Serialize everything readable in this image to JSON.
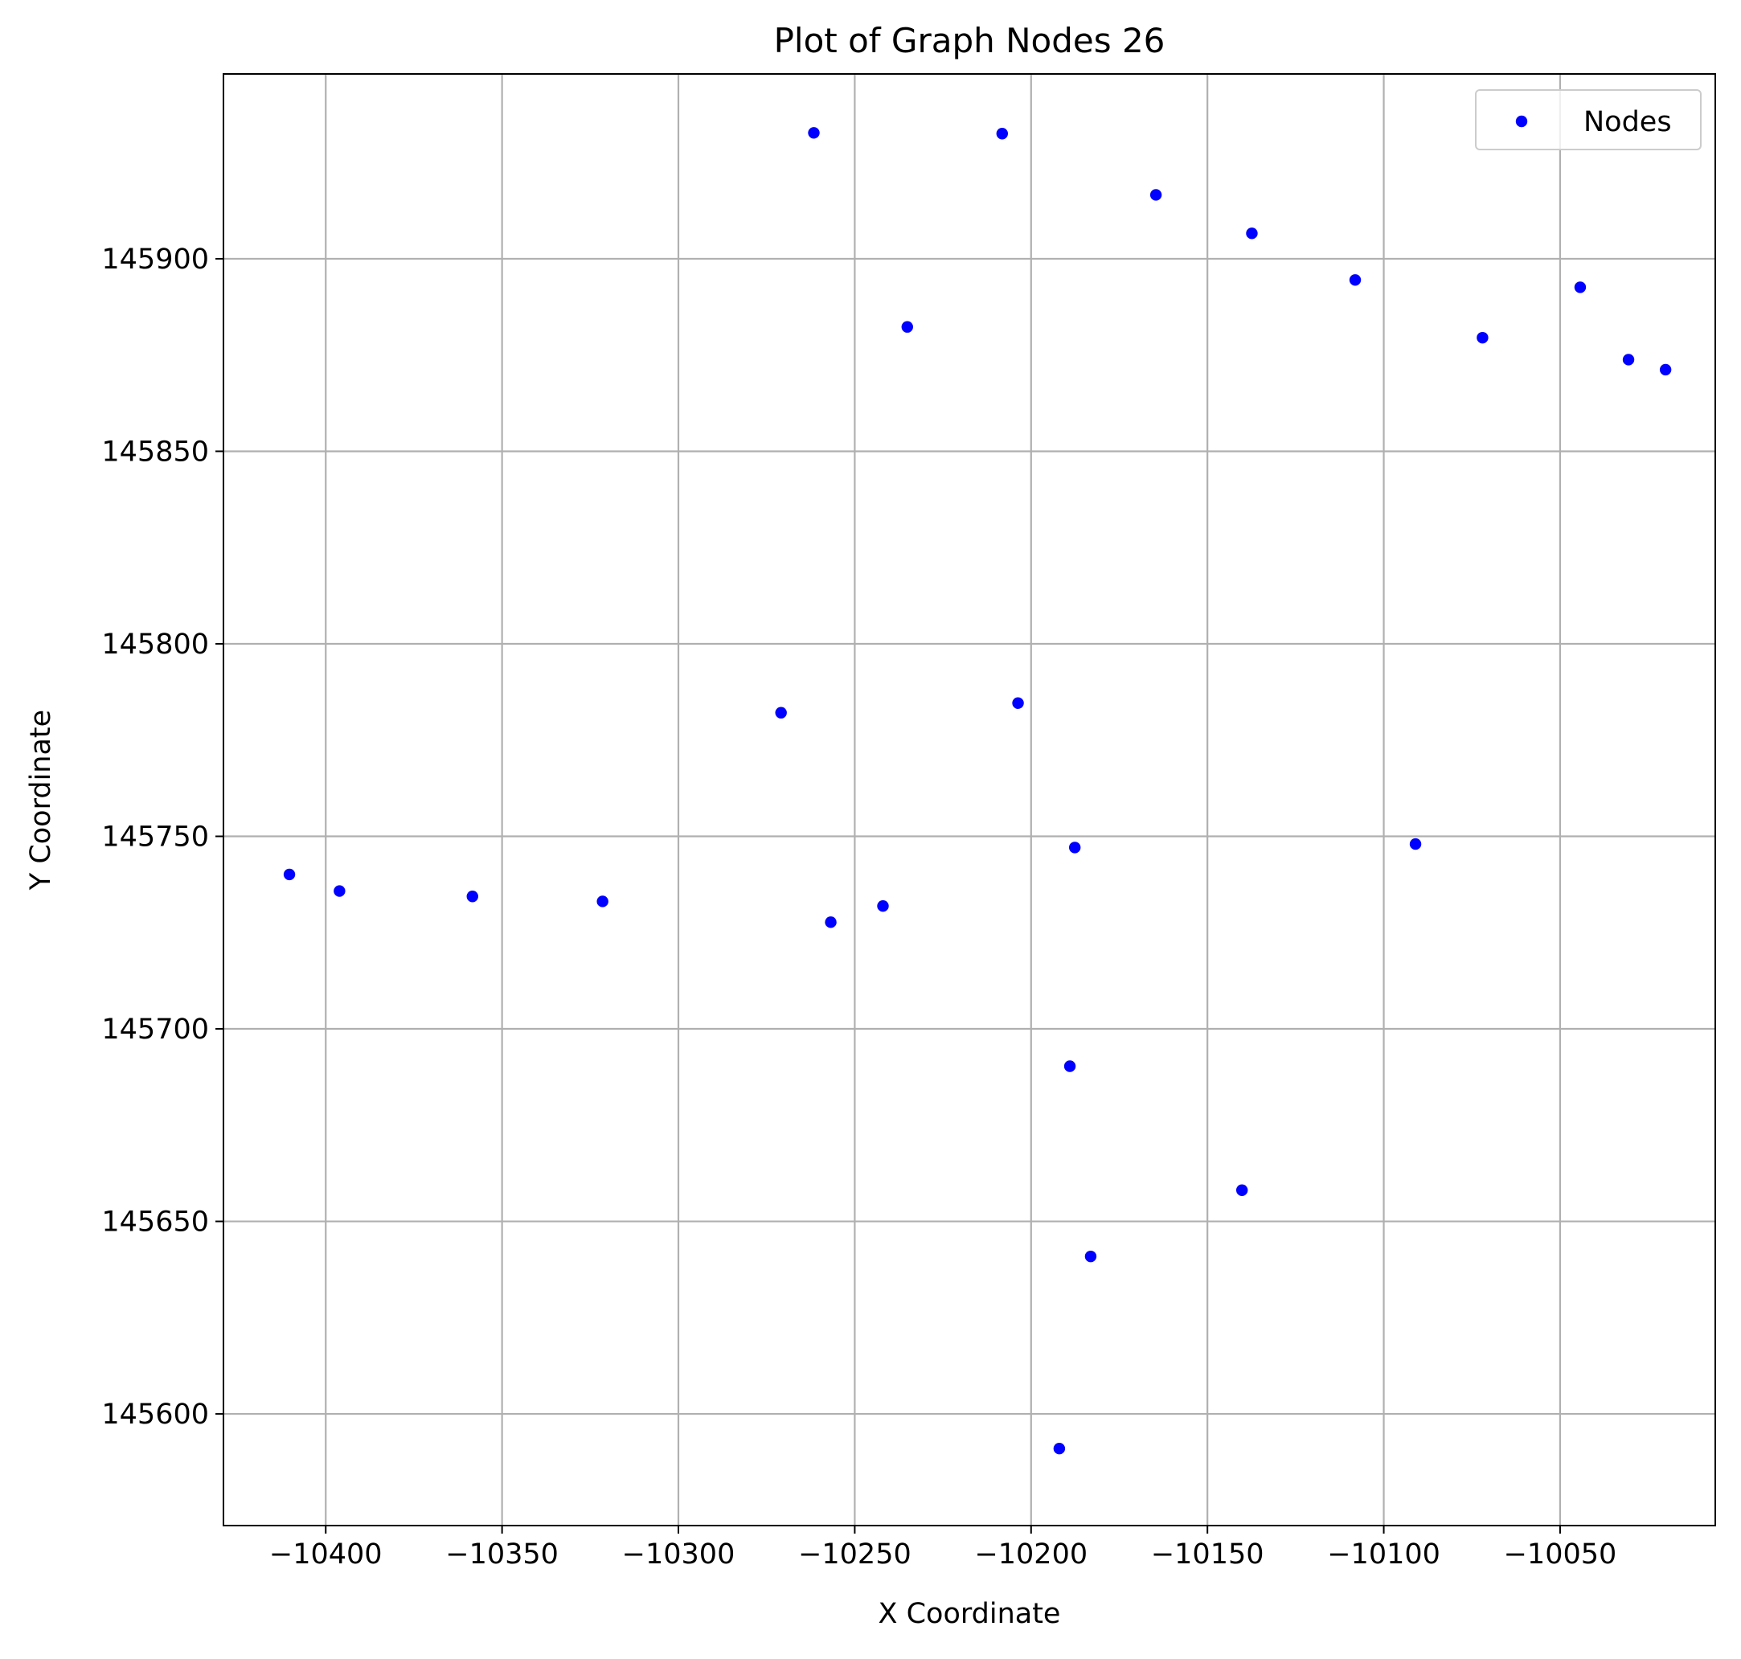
{
  "chart_data": {
    "type": "scatter",
    "title": "Plot of Graph Nodes 26",
    "xlabel": "X Coordinate",
    "ylabel": "Y Coordinate",
    "xlim": [
      -10429,
      -10006
    ],
    "ylim": [
      145571,
      145948
    ],
    "xticks": [
      -10400,
      -10350,
      -10300,
      -10250,
      -10200,
      -10150,
      -10100,
      -10050
    ],
    "xtick_labels": [
      "−10400",
      "−10350",
      "−10300",
      "−10250",
      "−10200",
      "−10150",
      "−10100",
      "−10050"
    ],
    "yticks": [
      145600,
      145650,
      145700,
      145750,
      145800,
      145850,
      145900
    ],
    "ytick_labels": [
      "145600",
      "145650",
      "145700",
      "145750",
      "145800",
      "145850",
      "145900"
    ],
    "grid": true,
    "legend": {
      "placement": "upper right",
      "entries": [
        "Nodes"
      ]
    },
    "series": [
      {
        "name": "Nodes",
        "color": "#0000ff",
        "marker": "circle",
        "points": [
          {
            "x": -10261.6,
            "y": 145932.7
          },
          {
            "x": -10208.2,
            "y": 145932.5
          },
          {
            "x": -10164.6,
            "y": 145916.6
          },
          {
            "x": -10137.4,
            "y": 145906.6
          },
          {
            "x": -10108.1,
            "y": 145894.5
          },
          {
            "x": -10044.3,
            "y": 145892.6
          },
          {
            "x": -10235.1,
            "y": 145882.3
          },
          {
            "x": -10072.0,
            "y": 145879.5
          },
          {
            "x": -10030.6,
            "y": 145873.8
          },
          {
            "x": -10020.1,
            "y": 145871.2
          },
          {
            "x": -10270.9,
            "y": 145782.1
          },
          {
            "x": -10203.7,
            "y": 145784.6
          },
          {
            "x": -10410.3,
            "y": 145740.1
          },
          {
            "x": -10396.1,
            "y": 145735.8
          },
          {
            "x": -10358.4,
            "y": 145734.4
          },
          {
            "x": -10321.5,
            "y": 145733.1
          },
          {
            "x": -10256.8,
            "y": 145727.7
          },
          {
            "x": -10242.0,
            "y": 145731.9
          },
          {
            "x": -10187.6,
            "y": 145747.1
          },
          {
            "x": -10091.0,
            "y": 145748.0
          },
          {
            "x": -10189.0,
            "y": 145690.3
          },
          {
            "x": -10140.2,
            "y": 145658.1
          },
          {
            "x": -10183.1,
            "y": 145640.9
          },
          {
            "x": -10192.0,
            "y": 145591.0
          }
        ]
      }
    ]
  }
}
